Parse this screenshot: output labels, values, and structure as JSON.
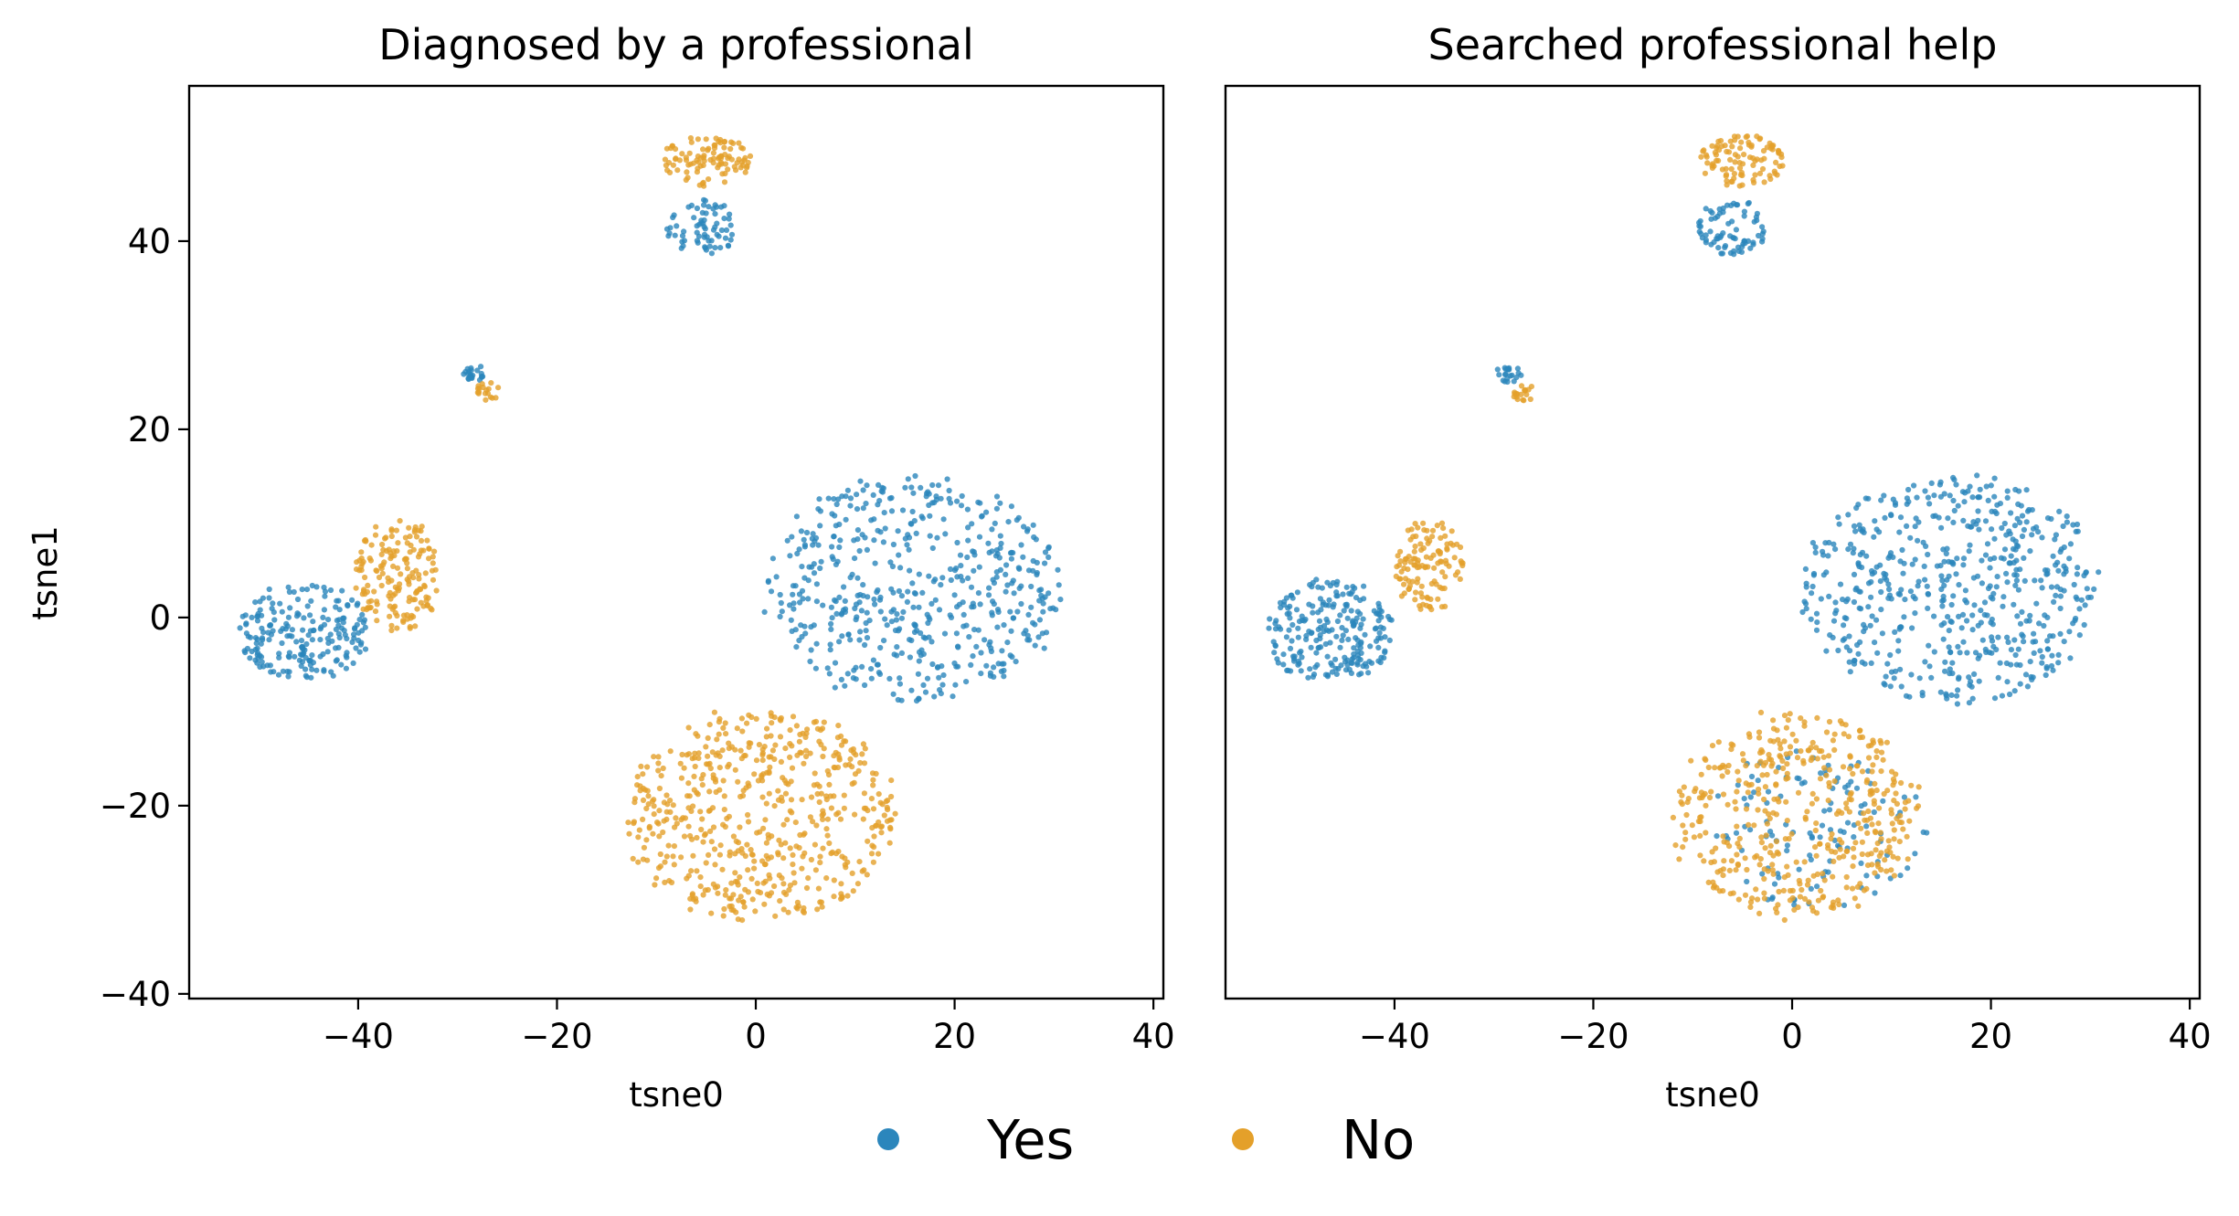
{
  "chart_data": [
    {
      "type": "scatter",
      "title": "Diagnosed by a professional",
      "xlabel": "tsne0",
      "ylabel": "tsne1",
      "xlim": [
        -57,
        41
      ],
      "ylim": [
        -40.5,
        56.5
      ],
      "xticks": [
        -40,
        -20,
        0,
        20,
        40
      ],
      "yticks": [
        -40,
        -20,
        0,
        20,
        40
      ],
      "show_yticks": true,
      "series": [
        {
          "name": "Yes",
          "color": "#2b86bc",
          "regions": [
            {
              "cx": -45.5,
              "cy": -1.5,
              "rx": 6.5,
              "ry": 5.2,
              "n": 210
            },
            {
              "cx": -28.5,
              "cy": 26.0,
              "rx": 1.3,
              "ry": 1.0,
              "n": 22
            },
            {
              "cx": -5.5,
              "cy": 41.5,
              "rx": 3.5,
              "ry": 3.0,
              "n": 70
            },
            {
              "cx": 16.0,
              "cy": 3.0,
              "rx": 15.0,
              "ry": 12.0,
              "n": 520
            }
          ]
        },
        {
          "name": "No",
          "color": "#e4a02a",
          "regions": [
            {
              "cx": -36.0,
              "cy": 4.5,
              "rx": 4.2,
              "ry": 6.0,
              "n": 170
            },
            {
              "cx": -27.0,
              "cy": 24.0,
              "rx": 1.2,
              "ry": 1.0,
              "n": 18
            },
            {
              "cx": -5.0,
              "cy": 48.5,
              "rx": 4.5,
              "ry": 2.8,
              "n": 100
            },
            {
              "cx": 0.5,
              "cy": -21.0,
              "rx": 13.5,
              "ry": 11.5,
              "n": 560
            }
          ]
        }
      ]
    },
    {
      "type": "scatter",
      "title": "Searched professional help",
      "xlabel": "tsne0",
      "ylabel": "",
      "xlim": [
        -57,
        41
      ],
      "ylim": [
        -40.5,
        56.5
      ],
      "xticks": [
        -40,
        -20,
        0,
        20,
        40
      ],
      "yticks": [],
      "show_yticks": false,
      "series": [
        {
          "name": "Yes",
          "color": "#2b86bc",
          "regions": [
            {
              "cx": -46.5,
              "cy": -1.5,
              "rx": 6.5,
              "ry": 5.5,
              "n": 230
            },
            {
              "cx": -28.5,
              "cy": 26.0,
              "rx": 1.3,
              "ry": 1.0,
              "n": 22
            },
            {
              "cx": -6.0,
              "cy": 41.5,
              "rx": 3.5,
              "ry": 3.0,
              "n": 75
            },
            {
              "cx": 16.0,
              "cy": 3.0,
              "rx": 15.0,
              "ry": 12.0,
              "n": 560
            },
            {
              "cx": 3.0,
              "cy": -22.0,
              "rx": 11.0,
              "ry": 9.0,
              "n": 120
            }
          ]
        },
        {
          "name": "No",
          "color": "#e4a02a",
          "regions": [
            {
              "cx": -36.5,
              "cy": 5.5,
              "rx": 3.5,
              "ry": 5.0,
              "n": 120
            },
            {
              "cx": -27.0,
              "cy": 24.0,
              "rx": 1.2,
              "ry": 1.0,
              "n": 18
            },
            {
              "cx": -5.0,
              "cy": 48.5,
              "rx": 4.5,
              "ry": 2.8,
              "n": 100
            },
            {
              "cx": 0.5,
              "cy": -21.0,
              "rx": 12.5,
              "ry": 11.0,
              "n": 440
            }
          ]
        }
      ]
    }
  ],
  "legend": {
    "placement": "bottom-center",
    "items": [
      {
        "label": "Yes",
        "color": "#2b86bc"
      },
      {
        "label": "No",
        "color": "#e4a02a"
      }
    ]
  }
}
